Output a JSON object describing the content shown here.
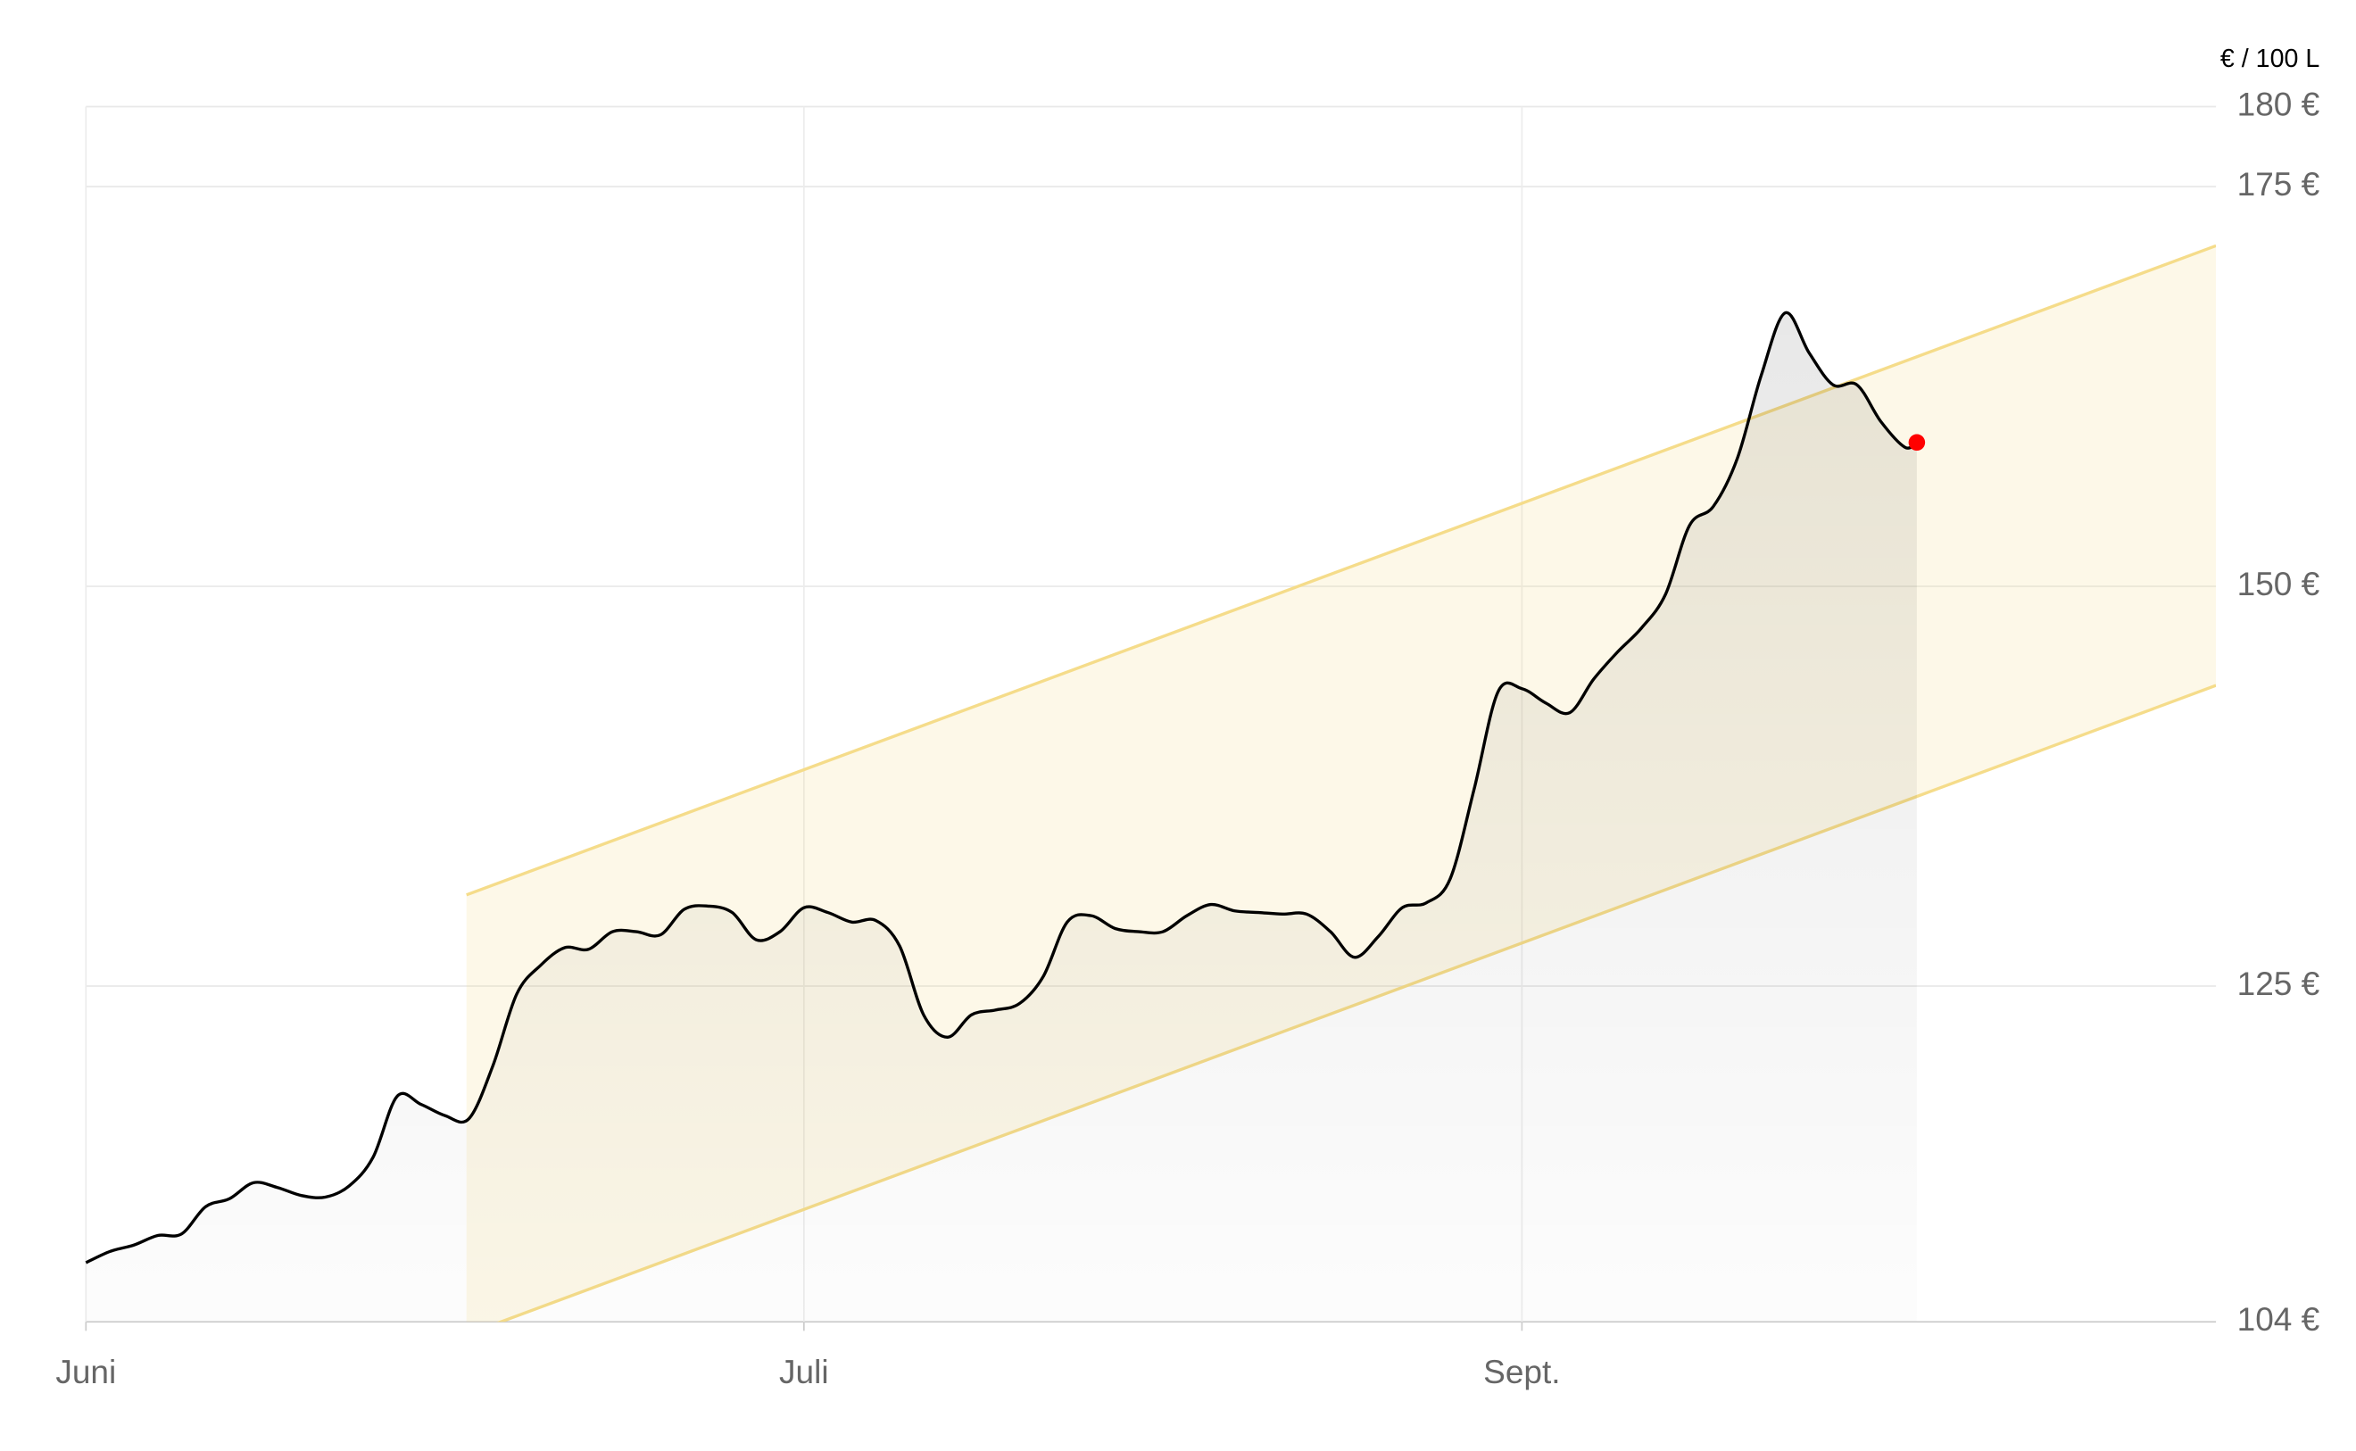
{
  "chart_data": {
    "type": "line",
    "unit_label": "€ / 100 L",
    "x": [
      0,
      1,
      2,
      3,
      4,
      5,
      6,
      7,
      8,
      9,
      10,
      11,
      12,
      13,
      14,
      15,
      16,
      17,
      18,
      19,
      20,
      21,
      22,
      23,
      24,
      25,
      26,
      27,
      28,
      29,
      30,
      31,
      32,
      33,
      34,
      35,
      36,
      37,
      38,
      39,
      40,
      41,
      42,
      43,
      44,
      45,
      46,
      47,
      48,
      49,
      50,
      51,
      52,
      53,
      54,
      55,
      56,
      57,
      58,
      59,
      60,
      61,
      62,
      63,
      64,
      65,
      66,
      67,
      68,
      69,
      70,
      71,
      72,
      73,
      74,
      75,
      76,
      76.5
    ],
    "values": [
      107.7,
      108.4,
      108.8,
      109.4,
      109.5,
      111.2,
      111.7,
      112.7,
      112.4,
      111.9,
      111.8,
      112.5,
      114.3,
      118.1,
      117.6,
      116.9,
      116.7,
      120.0,
      124.5,
      126.3,
      127.4,
      127.3,
      128.4,
      128.4,
      128.2,
      129.8,
      130.0,
      129.6,
      127.9,
      128.4,
      129.9,
      129.6,
      129.0,
      129.1,
      127.5,
      123.2,
      121.8,
      123.2,
      123.5,
      123.9,
      125.6,
      129.0,
      129.4,
      128.6,
      128.4,
      128.4,
      129.4,
      130.1,
      129.7,
      129.6,
      129.5,
      129.5,
      128.4,
      126.8,
      128.1,
      129.9,
      130.2,
      131.7,
      137.3,
      143.4,
      143.6,
      142.7,
      142.1,
      144.2,
      145.9,
      147.4,
      149.5,
      153.8,
      155.0,
      158.0,
      163.2,
      167.1,
      164.6,
      162.6,
      162.6,
      160.3,
      158.7,
      159.0
    ],
    "color": "#000000",
    "last_point_color": "#ff0000",
    "channel": {
      "x": [
        15.9,
        89
      ],
      "upper": [
        130.7,
        171.3
      ],
      "lower": [
        103.2,
        143.8
      ],
      "color": "#f5dc8a"
    },
    "xlim": [
      0,
      89
    ],
    "ylim": [
      104,
      180
    ],
    "xticks": [
      {
        "value": 0,
        "label": "Juni"
      },
      {
        "value": 30,
        "label": "Juli"
      },
      {
        "value": 60,
        "label": "Sept."
      }
    ],
    "yticks": [
      {
        "value": 104,
        "label": "104 €"
      },
      {
        "value": 125,
        "label": "125 €"
      },
      {
        "value": 150,
        "label": "150 €"
      },
      {
        "value": 175,
        "label": "175 €"
      },
      {
        "value": 180,
        "label": "180 €"
      }
    ],
    "grid": true
  }
}
